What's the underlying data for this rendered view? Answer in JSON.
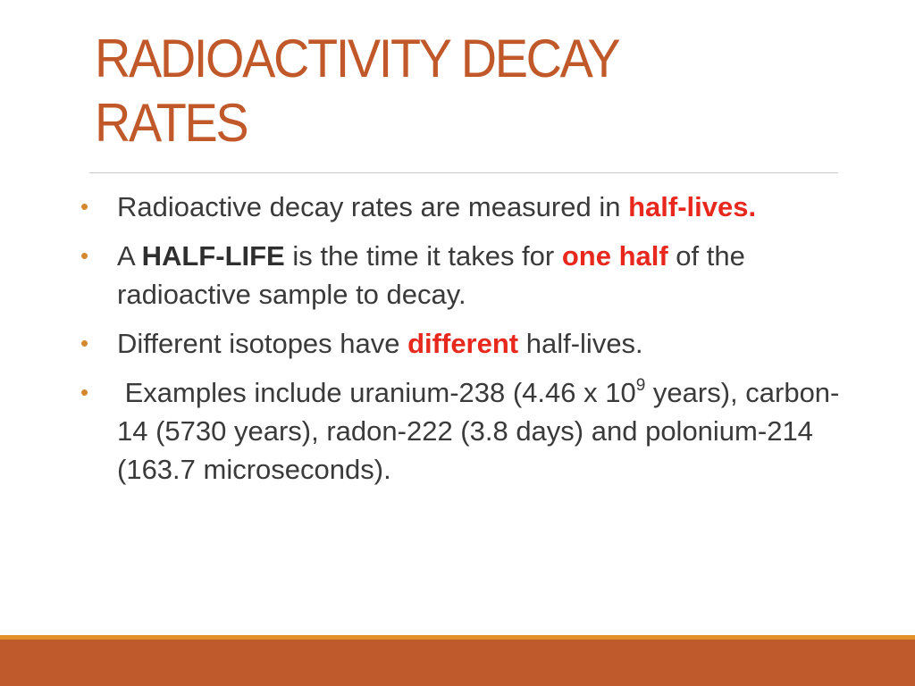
{
  "title": {
    "line1": "RADIOACTIVITY DECAY",
    "line2": "RATES"
  },
  "colors": {
    "title": "#c0582a",
    "bullet": "#d4892f",
    "highlight": "#e8281c",
    "footer_line": "#e29128",
    "footer_band": "#bf5a2c"
  },
  "bullet_glyph": "•",
  "bullets": [
    {
      "t1": "Radioactive decay rates are measured in ",
      "hl1": "half-lives."
    },
    {
      "t1": "A ",
      "b1": "HALF-LIFE",
      "t2": " is the time it takes for ",
      "hl1": "one half",
      "t3": " of the radioactive sample to decay."
    },
    {
      "t1": "Different isotopes have ",
      "hl1": "different",
      "t2": " half-lives."
    },
    {
      "t1": " Examples include uranium-238 (4.46 x 10",
      "sup": "9",
      "t2": " years), carbon-14 (5730 years), radon-222 (3.8 days) and polonium-214 (163.7 microseconds)."
    }
  ]
}
